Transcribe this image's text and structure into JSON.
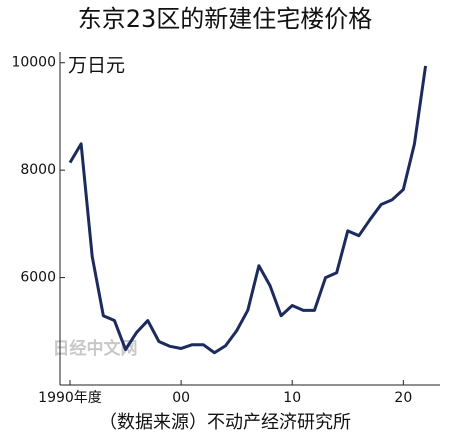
{
  "chart_data": {
    "type": "line",
    "title": "东京23区的新建住宅楼价格",
    "y_label": "万日元",
    "source": "（数据来源）不动产经济研究所",
    "watermark": "日经中文网",
    "x": [
      1990,
      1991,
      1992,
      1993,
      1994,
      1995,
      1996,
      1997,
      1998,
      1999,
      2000,
      2001,
      2002,
      2003,
      2004,
      2005,
      2006,
      2007,
      2008,
      2009,
      2010,
      2011,
      2012,
      2013,
      2014,
      2015,
      2016,
      2017,
      2018,
      2019,
      2020,
      2021,
      2022
    ],
    "series": [
      {
        "name": "价格",
        "color": "#1c2a5e",
        "values": [
          8140,
          8490,
          6390,
          5290,
          5200,
          4660,
          4980,
          5200,
          4810,
          4720,
          4680,
          4750,
          4750,
          4600,
          4730,
          5010,
          5390,
          6220,
          5850,
          5290,
          5480,
          5390,
          5390,
          6000,
          6090,
          6870,
          6780,
          7080,
          7360,
          7450,
          7640,
          8490,
          9940
        ]
      }
    ],
    "xlim": [
      1989.1,
      2023.3
    ],
    "ylim": [
      4000,
      10200
    ],
    "xticks": [
      {
        "value": 1990,
        "label": "1990年度"
      },
      {
        "value": 2000,
        "label": "00"
      },
      {
        "value": 2010,
        "label": "10"
      },
      {
        "value": 2020,
        "label": "20"
      }
    ],
    "yticks": [
      6000,
      8000,
      10000
    ]
  }
}
